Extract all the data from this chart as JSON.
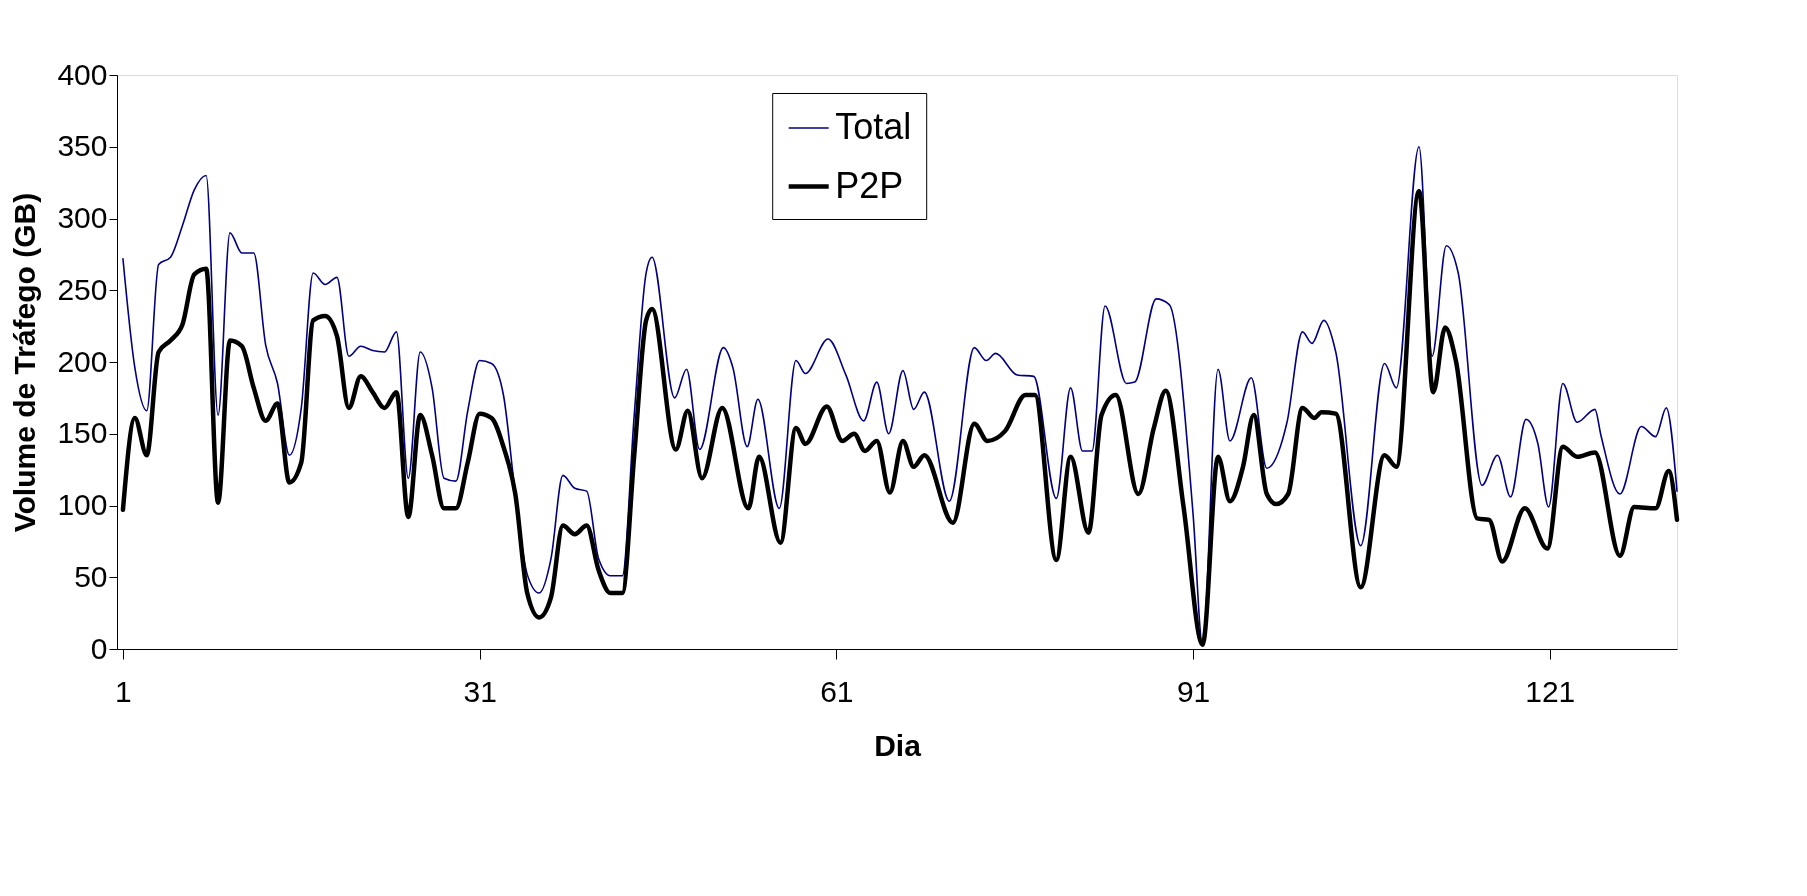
{
  "chart_data": {
    "type": "line",
    "xlabel": "Dia",
    "ylabel": "Volume de Tráfego (GB)",
    "xlim": [
      0.5,
      131.7
    ],
    "xticks": [
      1,
      31,
      61,
      91,
      121
    ],
    "ylim": [
      0,
      400
    ],
    "yticks": [
      0,
      50,
      100,
      150,
      200,
      250,
      300,
      350,
      400
    ],
    "grid": false,
    "legend": "top",
    "line_style": "solid",
    "marker": "none",
    "series": [
      {
        "name": "Total",
        "color": "#000080",
        "x": [
          1,
          2,
          3,
          4,
          5,
          6,
          7,
          8,
          9,
          10,
          11,
          12,
          13,
          14,
          15,
          16,
          17,
          18,
          19,
          20,
          21,
          22,
          23,
          24,
          25,
          26,
          27,
          28,
          29,
          30,
          31,
          32,
          33,
          34,
          35,
          36,
          37,
          38,
          39,
          40,
          41,
          42,
          43,
          44,
          45,
          45.5,
          47.4,
          48.4,
          49.5,
          51.5,
          52.3,
          53.5,
          54.4,
          56.2,
          57.6,
          58.4,
          60.3,
          61.8,
          63.3,
          64.4,
          65.4,
          66.6,
          67.5,
          68.4,
          70.5,
          72.6,
          73.6,
          74.4,
          76.2,
          77.6,
          79.5,
          80.7,
          81.7,
          82.5,
          83.6,
          85.4,
          86.1,
          87.9,
          89.0,
          91.0,
          91.8,
          93.1,
          94.1,
          95.9,
          97.2,
          98.9,
          100.2,
          101.0,
          102.0,
          103.0,
          105.1,
          107.1,
          108.1,
          110.0,
          111.1,
          112.3,
          113.3,
          115.3,
          116.6,
          117.7,
          119.0,
          120.0,
          120.9,
          122.1,
          123.3,
          124.8,
          125.3,
          126.9,
          128.7,
          129.9,
          130.8,
          131.7
        ],
        "values": [
          272,
          196,
          166,
          268,
          273,
          295,
          320,
          330,
          163,
          290,
          276,
          276,
          212,
          185,
          135,
          168,
          262,
          254,
          259,
          204,
          211,
          208,
          207,
          221,
          119,
          207,
          182,
          119,
          117,
          166,
          201,
          199,
          177,
          108,
          52,
          39,
          63,
          121,
          112,
          110,
          63,
          51,
          51,
          163,
          262,
          273,
          175,
          195,
          139,
          210,
          196,
          141,
          174,
          98,
          201,
          192,
          216,
          191,
          159,
          186,
          150,
          194,
          167,
          179,
          103,
          210,
          201,
          206,
          191,
          190,
          105,
          182,
          138,
          138,
          239,
          185,
          186,
          244,
          240,
          94,
          3,
          195,
          145,
          189,
          126,
          158,
          221,
          213,
          229,
          207,
          72,
          199,
          182,
          350,
          204,
          281,
          262,
          114,
          135,
          106,
          160,
          143,
          99,
          185,
          158,
          167,
          149,
          108,
          155,
          148,
          168,
          110
        ]
      },
      {
        "name": "P2P",
        "color": "#000000",
        "x": [
          1,
          2,
          3,
          4,
          5,
          6,
          7,
          8,
          9,
          10,
          11,
          12,
          13,
          14,
          15,
          16,
          17,
          18,
          19,
          20,
          21,
          22,
          23,
          24,
          25,
          26,
          27,
          28,
          29,
          30,
          31,
          32,
          33,
          34,
          35,
          36,
          37,
          38,
          39,
          40,
          41,
          42,
          43,
          44,
          45,
          45.5,
          47.5,
          48.5,
          49.7,
          51.4,
          53.6,
          54.5,
          56.3,
          57.6,
          58.4,
          60.2,
          61.5,
          62.5,
          63.4,
          64.4,
          65.5,
          66.6,
          67.5,
          68.4,
          70.8,
          72.6,
          73.7,
          75.2,
          76.9,
          77.7,
          79.5,
          80.7,
          82.2,
          83.3,
          84.5,
          86.4,
          87.7,
          88.7,
          90.2,
          91.8,
          93.1,
          94.1,
          95.2,
          96.1,
          97.2,
          98.0,
          99.0,
          100.2,
          101.2,
          101.8,
          103.0,
          105.1,
          107.1,
          108.1,
          110.0,
          111.2,
          112.2,
          113.1,
          114.9,
          115.9,
          117.0,
          118.9,
          120.8,
          122.1,
          123.3,
          124.8,
          126.9,
          128.1,
          129.9,
          131.0,
          131.7
        ],
        "values": [
          97,
          161,
          135,
          207,
          215,
          226,
          261,
          265,
          102,
          215,
          211,
          182,
          159,
          171,
          116,
          130,
          229,
          232,
          218,
          168,
          190,
          179,
          168,
          179,
          92,
          163,
          135,
          98,
          98,
          130,
          164,
          161,
          141,
          108,
          39,
          22,
          36,
          86,
          80,
          86,
          55,
          39,
          39,
          135,
          229,
          237,
          139,
          166,
          119,
          168,
          98,
          134,
          74,
          154,
          143,
          169,
          145,
          150,
          138,
          145,
          109,
          145,
          127,
          135,
          88,
          157,
          145,
          152,
          177,
          177,
          62,
          134,
          81,
          163,
          177,
          108,
          154,
          180,
          99,
          3,
          134,
          103,
          127,
          163,
          108,
          101,
          108,
          168,
          161,
          165,
          164,
          43,
          135,
          127,
          319,
          179,
          224,
          201,
          91,
          90,
          61,
          98,
          70,
          141,
          134,
          137,
          65,
          99,
          98,
          124,
          90
        ]
      }
    ]
  }
}
